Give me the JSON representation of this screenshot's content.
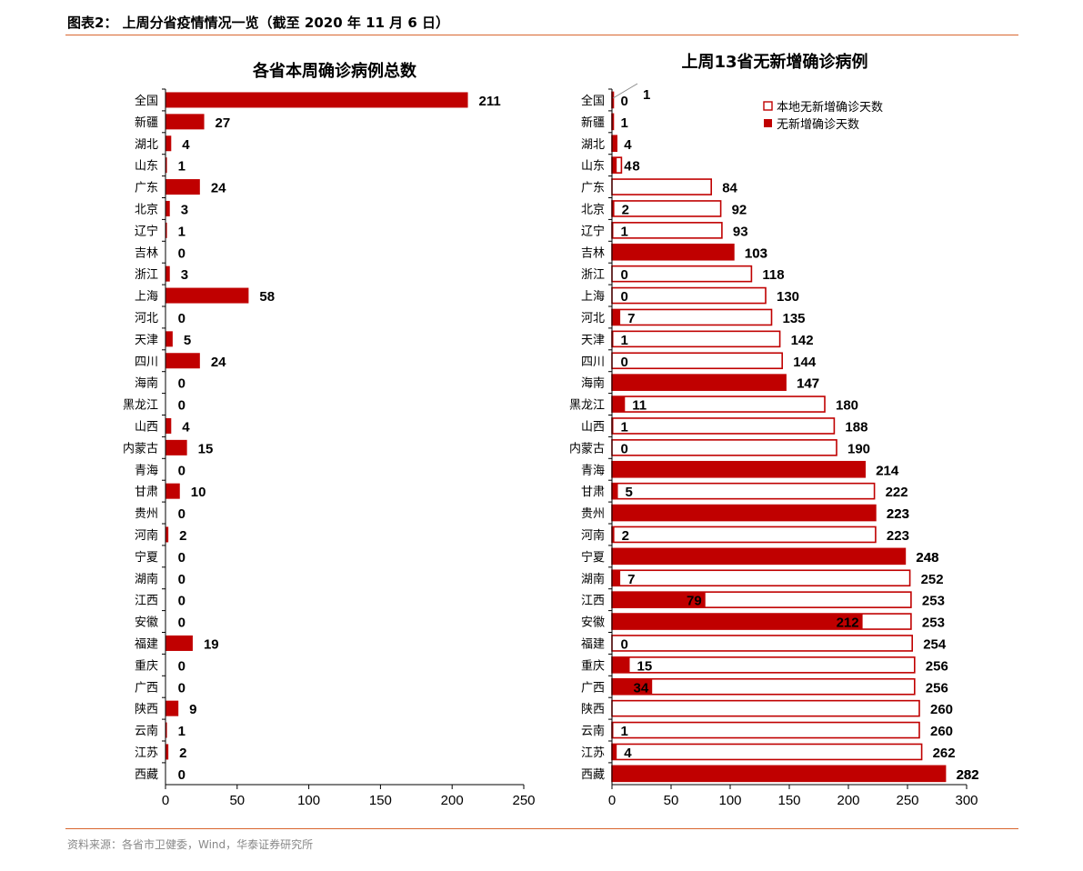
{
  "figure_title": "图表2：  上周分省疫情情况一览（截至 2020 年 11 月 6 日）",
  "source": "资料来源：各省市卫健委，Wind，华泰证券研究所",
  "colors": {
    "bar": "#c00000",
    "rule": "#d9662f"
  },
  "chart_data": [
    {
      "type": "bar",
      "orientation": "horizontal",
      "title": "各省本周确诊病例总数",
      "categories": [
        "全国",
        "新疆",
        "湖北",
        "山东",
        "广东",
        "北京",
        "辽宁",
        "吉林",
        "浙江",
        "上海",
        "河北",
        "天津",
        "四川",
        "海南",
        "黑龙江",
        "山西",
        "内蒙古",
        "青海",
        "甘肃",
        "贵州",
        "河南",
        "宁夏",
        "湖南",
        "江西",
        "安徽",
        "福建",
        "重庆",
        "广西",
        "陕西",
        "云南",
        "江苏",
        "西藏"
      ],
      "values": [
        211,
        27,
        4,
        1,
        24,
        3,
        1,
        0,
        3,
        58,
        0,
        5,
        24,
        0,
        0,
        4,
        15,
        0,
        10,
        0,
        2,
        0,
        0,
        0,
        0,
        19,
        0,
        0,
        9,
        1,
        2,
        0
      ],
      "xlim": [
        0,
        250
      ],
      "xticks": [
        0,
        50,
        100,
        150,
        200,
        250
      ]
    },
    {
      "type": "bar",
      "orientation": "horizontal",
      "title": "上周13省无新增确诊病例",
      "categories": [
        "全国",
        "新疆",
        "湖北",
        "山东",
        "广东",
        "北京",
        "辽宁",
        "吉林",
        "浙江",
        "上海",
        "河北",
        "天津",
        "四川",
        "海南",
        "黑龙江",
        "山西",
        "内蒙古",
        "青海",
        "甘肃",
        "贵州",
        "河南",
        "宁夏",
        "湖南",
        "江西",
        "安徽",
        "福建",
        "重庆",
        "广西",
        "陕西",
        "云南",
        "江苏",
        "西藏"
      ],
      "series": [
        {
          "name": "本地无新增确诊天数",
          "style": "outline",
          "values": [
            1,
            1,
            4,
            8,
            84,
            92,
            93,
            103,
            118,
            130,
            135,
            142,
            144,
            147,
            180,
            188,
            190,
            214,
            222,
            223,
            223,
            248,
            252,
            253,
            253,
            254,
            256,
            256,
            260,
            260,
            262,
            282
          ],
          "labels": [
            "1",
            "",
            "",
            "8",
            "84",
            "92",
            "93",
            "103",
            "118",
            "130",
            "135",
            "142",
            "144",
            "147",
            "180",
            "188",
            "190",
            "214",
            "222",
            "223",
            "223",
            "248",
            "252",
            "253",
            "253",
            "254",
            "256",
            "256",
            "260",
            "260",
            "262",
            "282"
          ]
        },
        {
          "name": "无新增确诊天数",
          "style": "filled",
          "values": [
            0,
            1,
            4,
            4,
            0,
            2,
            1,
            103,
            0,
            0,
            7,
            1,
            0,
            147,
            11,
            1,
            0,
            214,
            5,
            223,
            2,
            248,
            7,
            79,
            212,
            0,
            15,
            34,
            0,
            1,
            4,
            282
          ],
          "labels": [
            "0",
            "1",
            "4",
            "4",
            "",
            "2",
            "1",
            "103",
            "0",
            "0",
            "7",
            "1",
            "0",
            "147",
            "11",
            "1",
            "0",
            "214",
            "5",
            "223",
            "2",
            "248",
            "7",
            "79",
            "212",
            "0",
            "15",
            "34",
            "",
            "1",
            "4",
            "282"
          ]
        }
      ],
      "legend": [
        "本地无新增确诊天数",
        "无新增确诊天数"
      ],
      "legend_position": "top-right",
      "xlim": [
        0,
        300
      ],
      "xticks": [
        0,
        50,
        100,
        150,
        200,
        250,
        300
      ]
    }
  ]
}
